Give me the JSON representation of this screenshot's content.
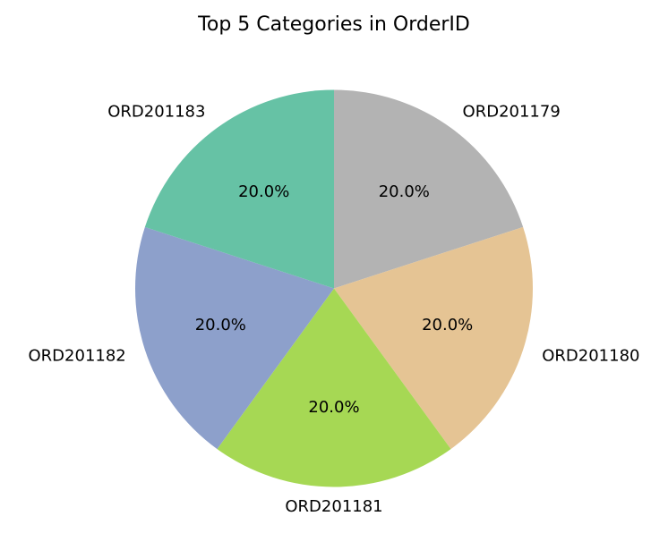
{
  "chart_data": {
    "type": "pie",
    "title": "Top 5 Categories in OrderID",
    "slices": [
      {
        "label": "ORD201179",
        "value": 20.0,
        "pct_label": "20.0%",
        "color": "#b3b3b3"
      },
      {
        "label": "ORD201180",
        "value": 20.0,
        "pct_label": "20.0%",
        "color": "#e5c494"
      },
      {
        "label": "ORD201181",
        "value": 20.0,
        "pct_label": "20.0%",
        "color": "#a6d854"
      },
      {
        "label": "ORD201182",
        "value": 20.0,
        "pct_label": "20.0%",
        "color": "#8da0cb"
      },
      {
        "label": "ORD201183",
        "value": 20.0,
        "pct_label": "20.0%",
        "color": "#66c2a5"
      }
    ],
    "start_angle_deg": 90,
    "direction": "clockwise",
    "legend": "none"
  }
}
